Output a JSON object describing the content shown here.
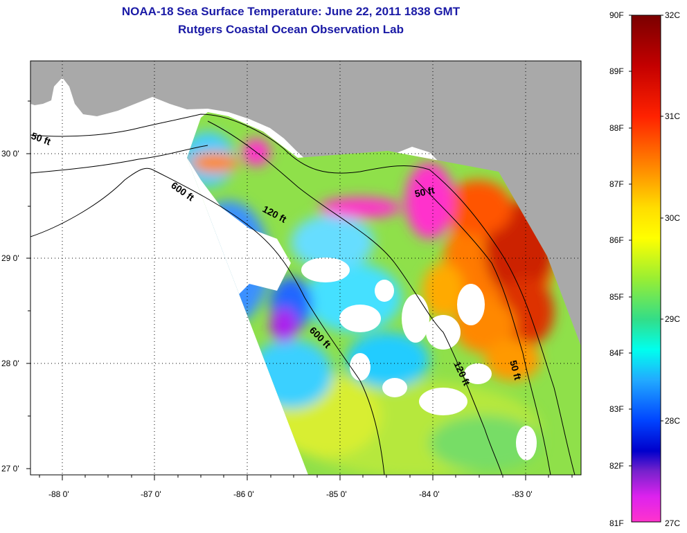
{
  "title": "NOAA-18 Sea Surface Temperature:  June 22, 2011 1838 GMT",
  "subtitle": "Rutgers Coastal Ocean Observation Lab",
  "axes": {
    "lat_labels": [
      "30 0'",
      "29 0'",
      "28 0'",
      "27 0'"
    ],
    "lon_labels": [
      "-88 0'",
      "-87 0'",
      "-86 0'",
      "-85 0'",
      "-84 0'",
      "-83 0'"
    ],
    "grid": "dotted"
  },
  "contours": [
    {
      "label": "50 ft"
    },
    {
      "label": "600 ft"
    },
    {
      "label": "120 ft"
    },
    {
      "label": "50 ft"
    },
    {
      "label": "600 ft"
    },
    {
      "label": "120 ft"
    },
    {
      "label": "50 ft"
    }
  ],
  "colorbar": {
    "fahrenheit": [
      "90F",
      "89F",
      "88F",
      "87F",
      "86F",
      "85F",
      "84F",
      "83F",
      "82F",
      "81F"
    ],
    "celsius": [
      "32C",
      "31C",
      "30C",
      "29C",
      "28C",
      "27C"
    ]
  },
  "colors": {
    "title": "#1a1aa6",
    "land": "#a9a9a9",
    "hot": "#cc2200",
    "warm": "#ff7a00",
    "mid": "#3cd8ff",
    "cool": "#ff33cc"
  }
}
